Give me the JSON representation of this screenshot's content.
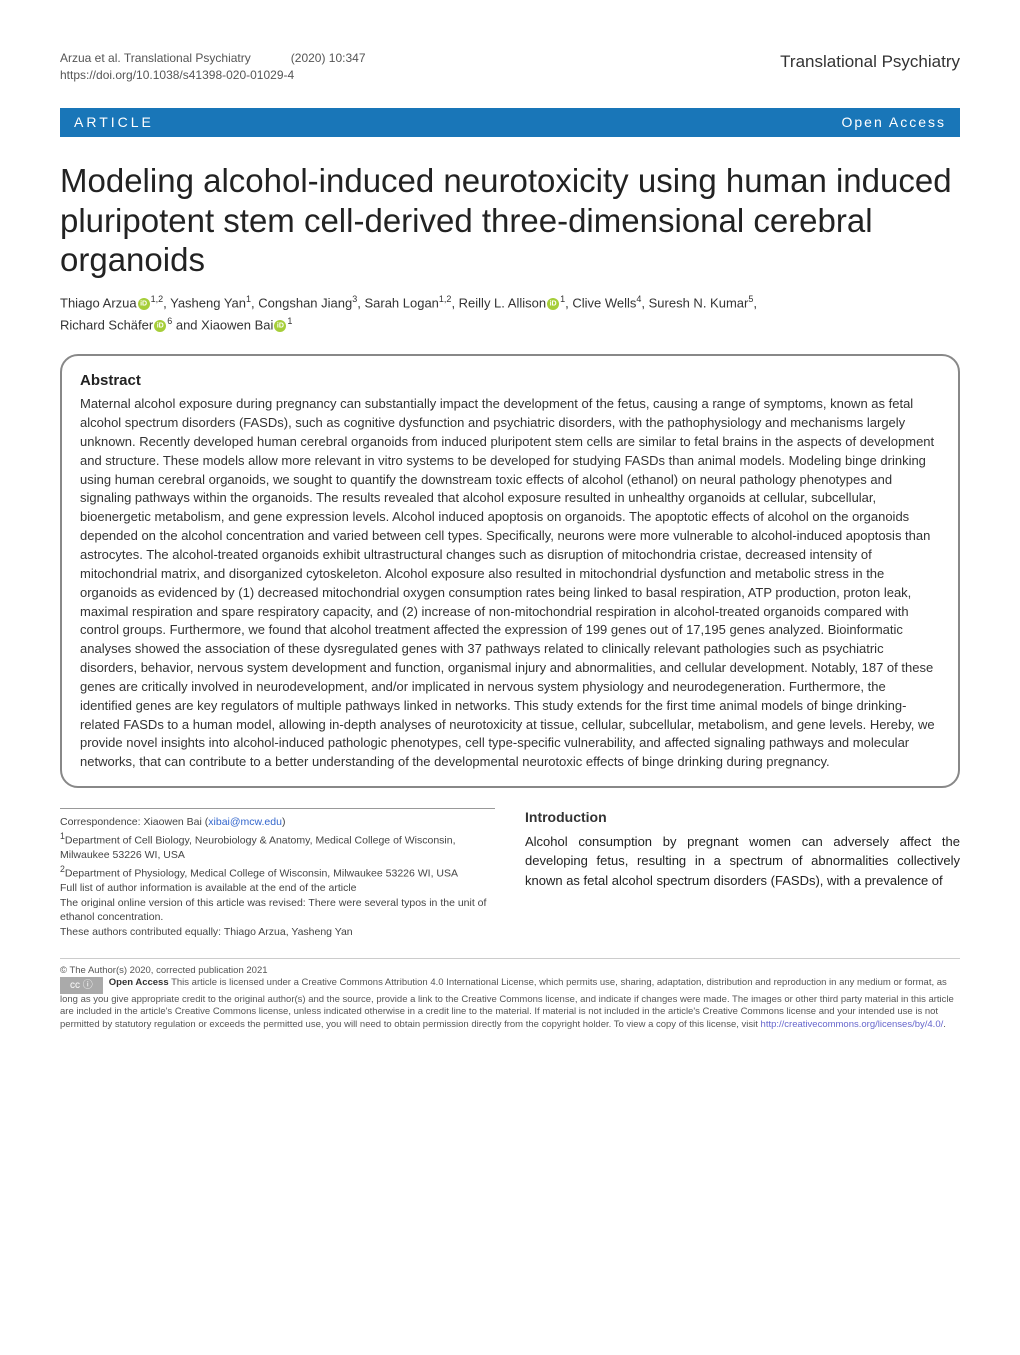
{
  "header": {
    "citation_left_line1": "Arzua et al. Translational Psychiatry",
    "citation_left_line2": "https://doi.org/10.1038/s41398-020-01029-4",
    "citation_center": "(2020)  10:347",
    "journal_name": "Translational Psychiatry"
  },
  "article_bar": {
    "left_label": "ARTICLE",
    "right_label": "Open Access"
  },
  "title": "Modeling alcohol-induced neurotoxicity using human induced pluripotent stem cell-derived three-dimensional cerebral organoids",
  "authors": {
    "a1": "Thiago Arzua",
    "a1_aff": "1,2",
    "a2": ", Yasheng Yan",
    "a2_aff": "1",
    "a3": ", Congshan Jiang",
    "a3_aff": "3",
    "a4": ", Sarah Logan",
    "a4_aff": "1,2",
    "a5": ", Reilly L. Allison",
    "a5_aff": "1",
    "a6": ", Clive Wells",
    "a6_aff": "4",
    "a7": ", Suresh N. Kumar",
    "a7_aff": "5",
    "a8": "Richard Schäfer",
    "a8_aff": "6",
    "a9": " and Xiaowen Bai",
    "a9_aff": "1"
  },
  "abstract": {
    "heading": "Abstract",
    "text": "Maternal alcohol exposure during pregnancy can substantially impact the development of the fetus, causing a range of symptoms, known as fetal alcohol spectrum disorders (FASDs), such as cognitive dysfunction and psychiatric disorders, with the pathophysiology and mechanisms largely unknown. Recently developed human cerebral organoids from induced pluripotent stem cells are similar to fetal brains in the aspects of development and structure. These models allow more relevant in vitro systems to be developed for studying FASDs than animal models. Modeling binge drinking using human cerebral organoids, we sought to quantify the downstream toxic effects of alcohol (ethanol) on neural pathology phenotypes and signaling pathways within the organoids. The results revealed that alcohol exposure resulted in unhealthy organoids at cellular, subcellular, bioenergetic metabolism, and gene expression levels. Alcohol induced apoptosis on organoids. The apoptotic effects of alcohol on the organoids depended on the alcohol concentration and varied between cell types. Specifically, neurons were more vulnerable to alcohol-induced apoptosis than astrocytes. The alcohol-treated organoids exhibit ultrastructural changes such as disruption of mitochondria cristae, decreased intensity of mitochondrial matrix, and disorganized cytoskeleton. Alcohol exposure also resulted in mitochondrial dysfunction and metabolic stress in the organoids as evidenced by (1) decreased mitochondrial oxygen consumption rates being linked to basal respiration, ATP production, proton leak, maximal respiration and spare respiratory capacity, and (2) increase of non-mitochondrial respiration in alcohol-treated organoids compared with control groups. Furthermore, we found that alcohol treatment affected the expression of 199 genes out of 17,195 genes analyzed. Bioinformatic analyses showed the association of these dysregulated genes with 37 pathways related to clinically relevant pathologies such as psychiatric disorders, behavior, nervous system development and function, organismal injury and abnormalities, and cellular development. Notably, 187 of these genes are critically involved in neurodevelopment, and/or implicated in nervous system physiology and neurodegeneration. Furthermore, the identified genes are key regulators of multiple pathways linked in networks. This study extends for the first time animal models of binge drinking-related FASDs to a human model, allowing in-depth analyses of neurotoxicity at tissue, cellular, subcellular, metabolism, and gene levels. Hereby, we provide novel insights into alcohol-induced pathologic phenotypes, cell type-specific vulnerability, and affected signaling pathways and molecular networks, that can contribute to a better understanding of the developmental neurotoxic effects of binge drinking during pregnancy."
  },
  "correspondence": {
    "line1_label": "Correspondence: Xiaowen Bai (",
    "line1_email": "xibai@mcw.edu",
    "line1_close": ")",
    "aff1": "Department of Cell Biology, Neurobiology & Anatomy, Medical College of Wisconsin, Milwaukee 53226 WI, USA",
    "aff2": "Department of Physiology, Medical College of Wisconsin, Milwaukee 53226 WI, USA",
    "full_list": "Full list of author information is available at the end of the article",
    "revision_note": "The original online version of this article was revised: There were several typos in the unit of ethanol concentration.",
    "equal_contrib": "These authors contributed equally: Thiago Arzua, Yasheng Yan"
  },
  "introduction": {
    "heading": "Introduction",
    "text": "Alcohol consumption by pregnant women can adversely affect the developing fetus, resulting in a spectrum of abnormalities collectively known as fetal alcohol spectrum disorders (FASDs), with a prevalence of"
  },
  "license": {
    "copyright": "© The Author(s) 2020, corrected publication 2021",
    "cc_label": "cc  ⓘ",
    "oa_label": "Open Access",
    "text_part1": " This article is licensed under a Creative Commons Attribution 4.0 International License, which permits use, sharing, adaptation, distribution and reproduction in any medium or format, as long as you give appropriate credit to the original author(s) and the source, provide a link to the Creative Commons license, and indicate if changes were made. The images or other third party material in this article are included in the article's Creative Commons license, unless indicated otherwise in a credit line to the material. If material is not included in the article's Creative Commons license and your intended use is not permitted by statutory regulation or exceeds the permitted use, you will need to obtain permission directly from the copyright holder. To view a copy of this license, visit ",
    "link": "http://creativecommons.org/licenses/by/4.0/",
    "text_part2": "."
  },
  "colors": {
    "article_bar_bg": "#1976b8"
  }
}
